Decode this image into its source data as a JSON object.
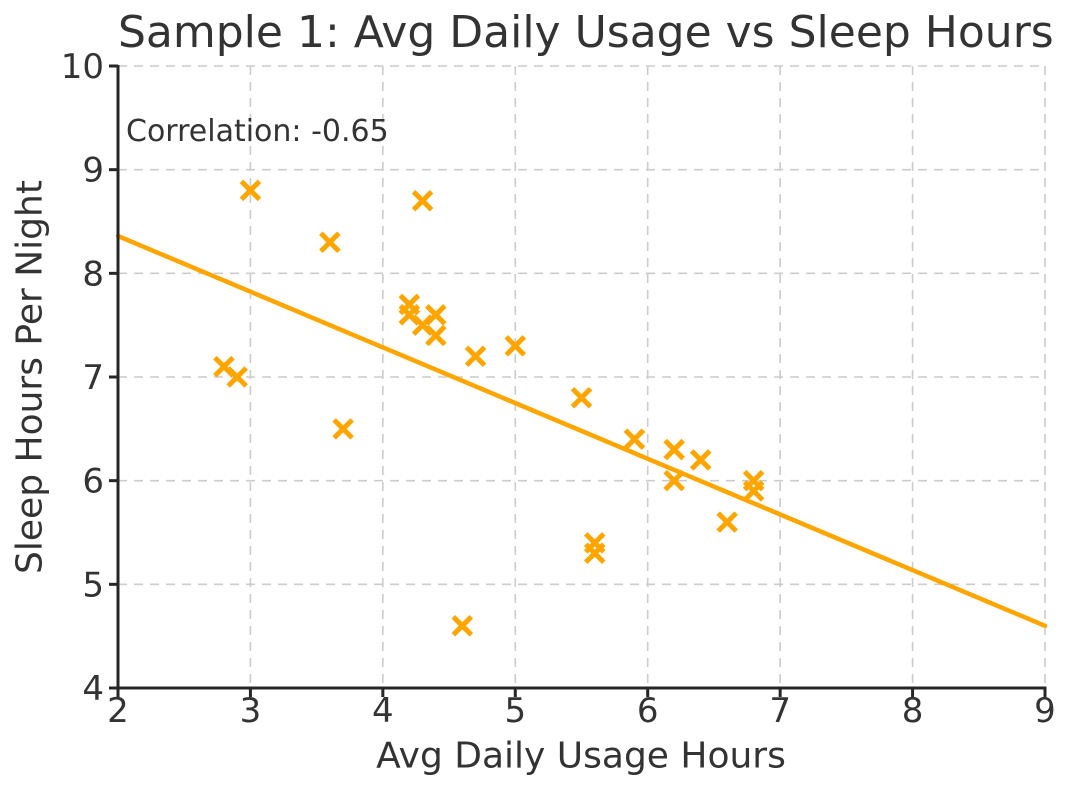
{
  "chart_data": {
    "type": "scatter",
    "title": "Sample 1: Avg Daily Usage vs Sleep Hours",
    "xlabel": "Avg Daily Usage Hours",
    "ylabel": "Sleep Hours Per Night",
    "annotation": "Correlation: -0.65",
    "correlation": -0.65,
    "xlim": [
      2,
      9
    ],
    "ylim": [
      4,
      10
    ],
    "xticks": [
      "2",
      "3",
      "4",
      "5",
      "6",
      "7",
      "8",
      "9"
    ],
    "yticks": [
      "4",
      "5",
      "6",
      "7",
      "8",
      "9",
      "10"
    ],
    "grid": true,
    "legend": "none",
    "marker": "x",
    "colors": {
      "series": "#FFA500",
      "trendline": "#FFA500",
      "text": "#333333",
      "axis": "#262626",
      "grid": "#cccccc"
    },
    "points": [
      [
        2.8,
        7.1
      ],
      [
        2.9,
        7.0
      ],
      [
        3.0,
        8.8
      ],
      [
        3.6,
        8.3
      ],
      [
        3.7,
        6.5
      ],
      [
        4.2,
        7.7
      ],
      [
        4.2,
        7.6
      ],
      [
        4.3,
        8.7
      ],
      [
        4.3,
        7.5
      ],
      [
        4.4,
        7.6
      ],
      [
        4.4,
        7.4
      ],
      [
        4.6,
        4.6
      ],
      [
        4.7,
        7.2
      ],
      [
        5.0,
        7.3
      ],
      [
        5.5,
        6.8
      ],
      [
        5.6,
        5.4
      ],
      [
        5.6,
        5.3
      ],
      [
        5.9,
        6.4
      ],
      [
        6.2,
        6.3
      ],
      [
        6.2,
        6.0
      ],
      [
        6.4,
        6.2
      ],
      [
        6.6,
        5.6
      ],
      [
        6.8,
        6.0
      ],
      [
        6.8,
        5.9
      ]
    ],
    "trendline": {
      "x": [
        2,
        9
      ],
      "y": [
        8.36,
        4.6
      ]
    }
  }
}
